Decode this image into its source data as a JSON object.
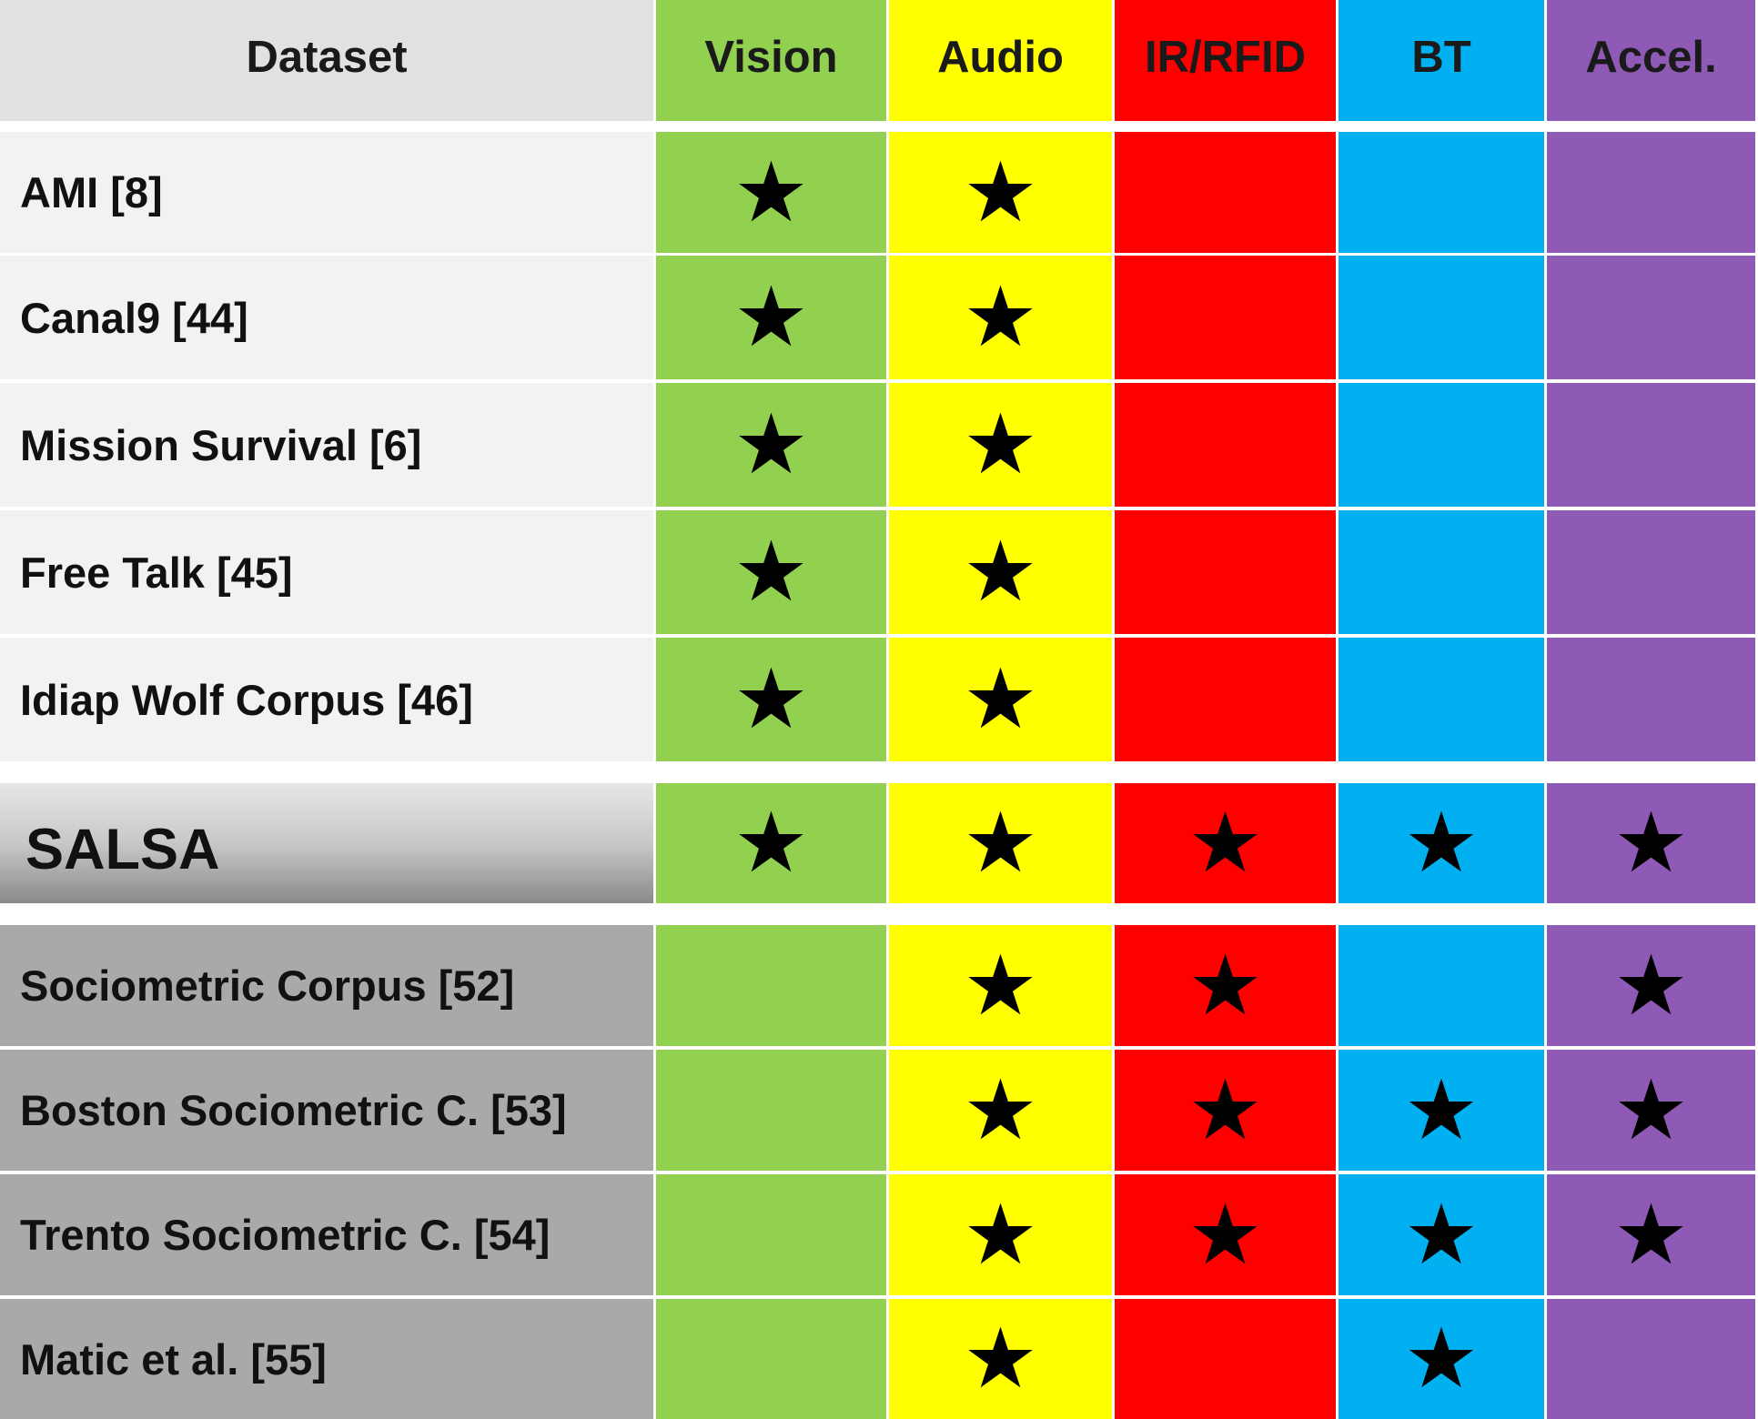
{
  "chart_data": {
    "type": "table",
    "columns": [
      "Dataset",
      "Vision",
      "Audio",
      "IR/RFID",
      "BT",
      "Accel."
    ],
    "column_colors": {
      "Vision": "#92d050",
      "Audio": "#ffff00",
      "IR/RFID": "#ff0000",
      "BT": "#00b0f0",
      "Accel.": "#8e5ab5"
    },
    "mark_symbol": "★",
    "rows": [
      {
        "dataset": "AMI [8]",
        "group": "top",
        "marks": [
          true,
          true,
          false,
          false,
          false
        ]
      },
      {
        "dataset": "Canal9 [44]",
        "group": "top",
        "marks": [
          true,
          true,
          false,
          false,
          false
        ]
      },
      {
        "dataset": "Mission Survival [6]",
        "group": "top",
        "marks": [
          true,
          true,
          false,
          false,
          false
        ]
      },
      {
        "dataset": "Free Talk [45]",
        "group": "top",
        "marks": [
          true,
          true,
          false,
          false,
          false
        ]
      },
      {
        "dataset": "Idiap Wolf Corpus [46]",
        "group": "top",
        "marks": [
          true,
          true,
          false,
          false,
          false
        ]
      },
      {
        "dataset": "SALSA",
        "group": "salsa",
        "marks": [
          true,
          true,
          true,
          true,
          true
        ]
      },
      {
        "dataset": "Sociometric Corpus [52]",
        "group": "bottom",
        "marks": [
          false,
          true,
          true,
          false,
          true
        ]
      },
      {
        "dataset": "Boston Sociometric C. [53]",
        "group": "bottom",
        "marks": [
          false,
          true,
          true,
          true,
          true
        ]
      },
      {
        "dataset": "Trento Sociometric C. [54]",
        "group": "bottom",
        "marks": [
          false,
          true,
          true,
          true,
          true
        ]
      },
      {
        "dataset": "Matic et al. [55]",
        "group": "bottom",
        "marks": [
          false,
          true,
          false,
          true,
          false
        ]
      }
    ]
  }
}
